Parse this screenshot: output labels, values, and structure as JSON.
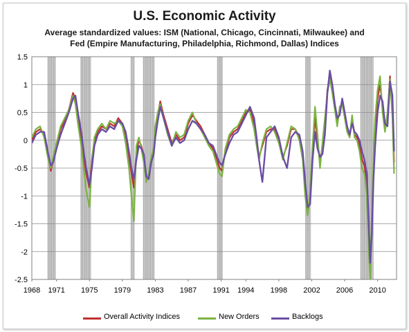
{
  "chart_data": {
    "type": "line",
    "title": "U.S. Economic Activity",
    "subtitle_line1": "Average standardized values: ISM (National, Chicago, Cincinnati, Milwaukee) and",
    "subtitle_line2": "Fed (Empire Manufacturing, Philadelphia, Richmond, Dallas) Indices",
    "xlabel": "",
    "ylabel": "",
    "xlim": [
      1968,
      2012.3
    ],
    "ylim": [
      -2.5,
      1.5
    ],
    "x_ticks": [
      1968,
      1971,
      1975,
      1979,
      1983,
      1987,
      1991,
      1994,
      1998,
      2002,
      2006,
      2010
    ],
    "y_ticks": [
      1.5,
      1,
      0.5,
      0,
      -0.5,
      -1,
      -1.5,
      -2,
      -2.5
    ],
    "y_tick_labels": [
      "1.5",
      "1",
      "0.5",
      "0",
      "-0.5",
      "-1",
      "-1.5",
      "-2",
      "-2.5"
    ],
    "grid": "horizontal",
    "legend_position": "bottom",
    "recessions": [
      [
        1969.9,
        1970.9
      ],
      [
        1973.9,
        1975.2
      ],
      [
        1980.0,
        1980.5
      ],
      [
        1981.5,
        1982.9
      ],
      [
        1990.5,
        1991.2
      ],
      [
        2001.2,
        2001.9
      ],
      [
        2007.9,
        2009.5
      ]
    ],
    "recession_color": "#c0c0c0",
    "series": [
      {
        "name": "Overall Activity Indices",
        "color": "#c0302d",
        "x": [
          1968.0,
          1968.5,
          1969.0,
          1969.5,
          1970.0,
          1970.3,
          1970.6,
          1971.0,
          1971.5,
          1972.0,
          1972.5,
          1973.0,
          1973.3,
          1973.6,
          1974.0,
          1974.3,
          1974.6,
          1975.0,
          1975.3,
          1975.6,
          1976.0,
          1976.5,
          1977.0,
          1977.5,
          1978.0,
          1978.5,
          1979.0,
          1979.4,
          1979.8,
          1980.1,
          1980.4,
          1980.7,
          1981.0,
          1981.3,
          1981.6,
          1981.9,
          1982.2,
          1982.5,
          1982.8,
          1983.0,
          1983.3,
          1983.6,
          1984.0,
          1984.5,
          1985.0,
          1985.5,
          1986.0,
          1986.5,
          1987.0,
          1987.5,
          1988.0,
          1988.5,
          1989.0,
          1989.5,
          1990.0,
          1990.5,
          1990.8,
          1991.1,
          1991.5,
          1992.0,
          1992.5,
          1993.0,
          1993.5,
          1994.0,
          1994.5,
          1995.0,
          1995.3,
          1995.6,
          1996.0,
          1996.5,
          1997.0,
          1997.5,
          1998.0,
          1998.5,
          1999.0,
          1999.5,
          2000.0,
          2000.5,
          2000.9,
          2001.2,
          2001.5,
          2001.8,
          2002.1,
          2002.4,
          2002.7,
          2003.0,
          2003.3,
          2003.6,
          2003.9,
          2004.2,
          2004.5,
          2004.8,
          2005.1,
          2005.4,
          2005.7,
          2006.0,
          2006.3,
          2006.6,
          2006.9,
          2007.2,
          2007.5,
          2007.8,
          2008.1,
          2008.4,
          2008.7,
          2008.9,
          2009.1,
          2009.3,
          2009.5,
          2009.7,
          2010.0,
          2010.3,
          2010.6,
          2010.9,
          2011.2,
          2011.5,
          2011.8,
          2012.0
        ],
        "y": [
          0.0,
          0.15,
          0.2,
          0.1,
          -0.3,
          -0.55,
          -0.35,
          -0.1,
          0.2,
          0.35,
          0.55,
          0.85,
          0.75,
          0.4,
          0.0,
          -0.3,
          -0.6,
          -0.85,
          -0.35,
          0.0,
          0.15,
          0.25,
          0.2,
          0.3,
          0.25,
          0.4,
          0.3,
          0.1,
          -0.3,
          -0.6,
          -0.85,
          -0.2,
          0.0,
          -0.1,
          -0.3,
          -0.7,
          -0.65,
          -0.35,
          -0.2,
          0.15,
          0.45,
          0.7,
          0.45,
          0.2,
          -0.05,
          0.1,
          0.0,
          0.05,
          0.3,
          0.45,
          0.35,
          0.25,
          0.1,
          -0.05,
          -0.15,
          -0.35,
          -0.5,
          -0.55,
          -0.2,
          0.05,
          0.15,
          0.2,
          0.35,
          0.5,
          0.55,
          0.3,
          0.0,
          -0.3,
          -0.1,
          0.15,
          0.2,
          0.2,
          0.0,
          -0.3,
          -0.1,
          0.2,
          0.2,
          0.05,
          -0.3,
          -0.9,
          -1.3,
          -1.05,
          -0.2,
          0.4,
          0.0,
          -0.4,
          -0.1,
          0.3,
          0.9,
          1.15,
          0.9,
          0.6,
          0.3,
          0.55,
          0.7,
          0.45,
          0.2,
          0.05,
          0.4,
          0.1,
          0.05,
          -0.1,
          -0.35,
          -0.45,
          -0.8,
          -1.7,
          -2.4,
          -1.5,
          -0.5,
          0.2,
          0.75,
          1.0,
          0.6,
          0.2,
          0.4,
          1.15,
          0.5,
          -0.4
        ]
      },
      {
        "name": "New Orders",
        "color": "#7cb342",
        "x": [
          1968.0,
          1968.5,
          1969.0,
          1969.5,
          1970.0,
          1970.3,
          1970.6,
          1971.0,
          1971.5,
          1972.0,
          1972.5,
          1973.0,
          1973.3,
          1973.6,
          1974.0,
          1974.3,
          1974.6,
          1975.0,
          1975.3,
          1975.6,
          1976.0,
          1976.5,
          1977.0,
          1977.5,
          1978.0,
          1978.5,
          1979.0,
          1979.4,
          1979.8,
          1980.1,
          1980.4,
          1980.7,
          1981.0,
          1981.3,
          1981.6,
          1981.9,
          1982.2,
          1982.5,
          1982.8,
          1983.0,
          1983.3,
          1983.6,
          1984.0,
          1984.5,
          1985.0,
          1985.5,
          1986.0,
          1986.5,
          1987.0,
          1987.5,
          1988.0,
          1988.5,
          1989.0,
          1989.5,
          1990.0,
          1990.5,
          1990.8,
          1991.1,
          1991.5,
          1992.0,
          1992.5,
          1993.0,
          1993.5,
          1994.0,
          1994.5,
          1995.0,
          1995.3,
          1995.6,
          1996.0,
          1996.5,
          1997.0,
          1997.5,
          1998.0,
          1998.5,
          1999.0,
          1999.5,
          2000.0,
          2000.5,
          2000.9,
          2001.2,
          2001.5,
          2001.8,
          2002.1,
          2002.4,
          2002.7,
          2003.0,
          2003.3,
          2003.6,
          2003.9,
          2004.2,
          2004.5,
          2004.8,
          2005.1,
          2005.4,
          2005.7,
          2006.0,
          2006.3,
          2006.6,
          2006.9,
          2007.2,
          2007.5,
          2007.8,
          2008.1,
          2008.4,
          2008.7,
          2008.9,
          2009.1,
          2009.3,
          2009.5,
          2009.7,
          2010.0,
          2010.3,
          2010.6,
          2010.9,
          2011.2,
          2011.5,
          2011.8,
          2012.0
        ],
        "y": [
          0.05,
          0.2,
          0.25,
          0.05,
          -0.35,
          -0.5,
          -0.3,
          -0.05,
          0.25,
          0.4,
          0.55,
          0.8,
          0.65,
          0.3,
          -0.1,
          -0.5,
          -0.9,
          -1.2,
          -0.4,
          0.05,
          0.2,
          0.3,
          0.2,
          0.35,
          0.3,
          0.35,
          0.25,
          -0.05,
          -0.5,
          -1.0,
          -1.45,
          -0.1,
          0.05,
          -0.15,
          -0.4,
          -0.75,
          -0.6,
          -0.3,
          -0.15,
          0.25,
          0.5,
          0.65,
          0.4,
          0.1,
          -0.1,
          0.15,
          0.05,
          0.1,
          0.35,
          0.5,
          0.3,
          0.2,
          0.05,
          -0.1,
          -0.2,
          -0.45,
          -0.6,
          -0.65,
          -0.15,
          0.1,
          0.2,
          0.25,
          0.4,
          0.55,
          0.5,
          0.2,
          -0.1,
          -0.35,
          -0.05,
          0.2,
          0.25,
          0.15,
          -0.05,
          -0.35,
          -0.05,
          0.25,
          0.2,
          0.0,
          -0.35,
          -1.0,
          -1.35,
          -0.9,
          -0.1,
          0.6,
          0.1,
          -0.5,
          -0.05,
          0.4,
          0.85,
          1.1,
          0.85,
          0.55,
          0.25,
          0.6,
          0.65,
          0.4,
          0.15,
          0.05,
          0.45,
          0.05,
          0.0,
          -0.2,
          -0.5,
          -0.6,
          -1.0,
          -1.9,
          -2.5,
          -1.3,
          -0.3,
          0.4,
          0.9,
          1.15,
          0.5,
          0.15,
          0.5,
          1.1,
          0.4,
          -0.6
        ]
      },
      {
        "name": "Backlogs",
        "color": "#6a4ea3",
        "x": [
          1968.0,
          1968.5,
          1969.0,
          1969.5,
          1970.0,
          1970.3,
          1970.6,
          1971.0,
          1971.5,
          1972.0,
          1972.5,
          1973.0,
          1973.3,
          1973.6,
          1974.0,
          1974.3,
          1974.6,
          1975.0,
          1975.3,
          1975.6,
          1976.0,
          1976.5,
          1977.0,
          1977.5,
          1978.0,
          1978.5,
          1979.0,
          1979.4,
          1979.8,
          1980.1,
          1980.4,
          1980.7,
          1981.0,
          1981.3,
          1981.6,
          1981.9,
          1982.2,
          1982.5,
          1982.8,
          1983.0,
          1983.3,
          1983.6,
          1984.0,
          1984.5,
          1985.0,
          1985.5,
          1986.0,
          1986.5,
          1987.0,
          1987.5,
          1988.0,
          1988.5,
          1989.0,
          1989.5,
          1990.0,
          1990.5,
          1990.8,
          1991.1,
          1991.5,
          1992.0,
          1992.5,
          1993.0,
          1993.5,
          1994.0,
          1994.5,
          1995.0,
          1995.3,
          1995.6,
          1996.0,
          1996.5,
          1997.0,
          1997.5,
          1998.0,
          1998.5,
          1999.0,
          1999.5,
          2000.0,
          2000.5,
          2000.9,
          2001.2,
          2001.5,
          2001.8,
          2002.1,
          2002.4,
          2002.7,
          2003.0,
          2003.3,
          2003.6,
          2003.9,
          2004.2,
          2004.5,
          2004.8,
          2005.1,
          2005.4,
          2005.7,
          2006.0,
          2006.3,
          2006.6,
          2006.9,
          2007.2,
          2007.5,
          2007.8,
          2008.1,
          2008.4,
          2008.7,
          2008.9,
          2009.1,
          2009.3,
          2009.5,
          2009.7,
          2010.0,
          2010.3,
          2010.6,
          2010.9,
          2011.2,
          2011.5,
          2011.8,
          2012.0
        ],
        "y": [
          -0.05,
          0.1,
          0.15,
          0.15,
          -0.25,
          -0.45,
          -0.4,
          -0.15,
          0.1,
          0.3,
          0.5,
          0.75,
          0.8,
          0.5,
          0.15,
          -0.2,
          -0.5,
          -0.8,
          -0.5,
          -0.1,
          0.1,
          0.2,
          0.15,
          0.25,
          0.2,
          0.35,
          0.3,
          0.15,
          -0.2,
          -0.5,
          -0.7,
          -0.35,
          -0.1,
          -0.15,
          -0.25,
          -0.65,
          -0.7,
          -0.4,
          -0.25,
          0.05,
          0.35,
          0.6,
          0.4,
          0.15,
          -0.1,
          0.05,
          -0.05,
          0.0,
          0.2,
          0.35,
          0.3,
          0.2,
          0.1,
          -0.05,
          -0.1,
          -0.3,
          -0.4,
          -0.45,
          -0.25,
          -0.05,
          0.1,
          0.15,
          0.3,
          0.45,
          0.6,
          0.4,
          0.05,
          -0.35,
          -0.75,
          0.05,
          0.15,
          0.25,
          0.05,
          -0.3,
          -0.5,
          0.05,
          0.15,
          0.1,
          -0.2,
          -0.75,
          -1.2,
          -1.15,
          -0.35,
          0.15,
          -0.15,
          -0.3,
          -0.25,
          0.1,
          0.85,
          1.25,
          1.0,
          0.65,
          0.4,
          0.45,
          0.75,
          0.5,
          0.25,
          0.1,
          0.3,
          0.15,
          0.1,
          0.0,
          -0.2,
          -0.35,
          -0.6,
          -1.4,
          -2.2,
          -1.7,
          -0.7,
          -0.1,
          0.5,
          0.8,
          0.7,
          0.3,
          0.25,
          1.05,
          0.8,
          -0.2
        ]
      }
    ]
  }
}
